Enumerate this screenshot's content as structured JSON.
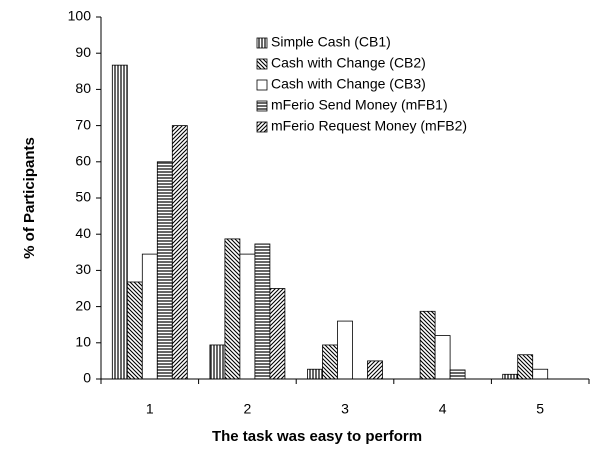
{
  "chart_data": {
    "type": "bar",
    "xlabel": "The task was easy to perform",
    "ylabel": "% of Participants",
    "categories": [
      "1",
      "2",
      "3",
      "4",
      "5"
    ],
    "series": [
      {
        "name": "Simple Cash (CB1)",
        "color": "#000000",
        "pattern": "vertical",
        "values": [
          86.7,
          9.4,
          2.7,
          0,
          1.3
        ]
      },
      {
        "name": "Cash with Change (CB2)",
        "color": "#000000",
        "pattern": "backslash",
        "values": [
          26.8,
          38.7,
          9.4,
          18.7,
          6.7
        ]
      },
      {
        "name": "Cash with Change (CB3)",
        "color": "#000000",
        "pattern": "none",
        "values": [
          34.5,
          34.5,
          16,
          12,
          2.7
        ]
      },
      {
        "name": "mFerio Send Money (mFB1)",
        "color": "#000000",
        "pattern": "horizontal",
        "values": [
          60,
          37.3,
          0,
          2.5,
          0
        ]
      },
      {
        "name": "mFerio Request Money (mFB2)",
        "color": "#000000",
        "pattern": "slash",
        "values": [
          70,
          25,
          5,
          0,
          0
        ]
      }
    ],
    "ylim": [
      0,
      100
    ],
    "yticks": [
      0,
      10,
      20,
      30,
      40,
      50,
      60,
      70,
      80,
      90,
      100
    ],
    "grid": false,
    "legend": "top-right"
  }
}
